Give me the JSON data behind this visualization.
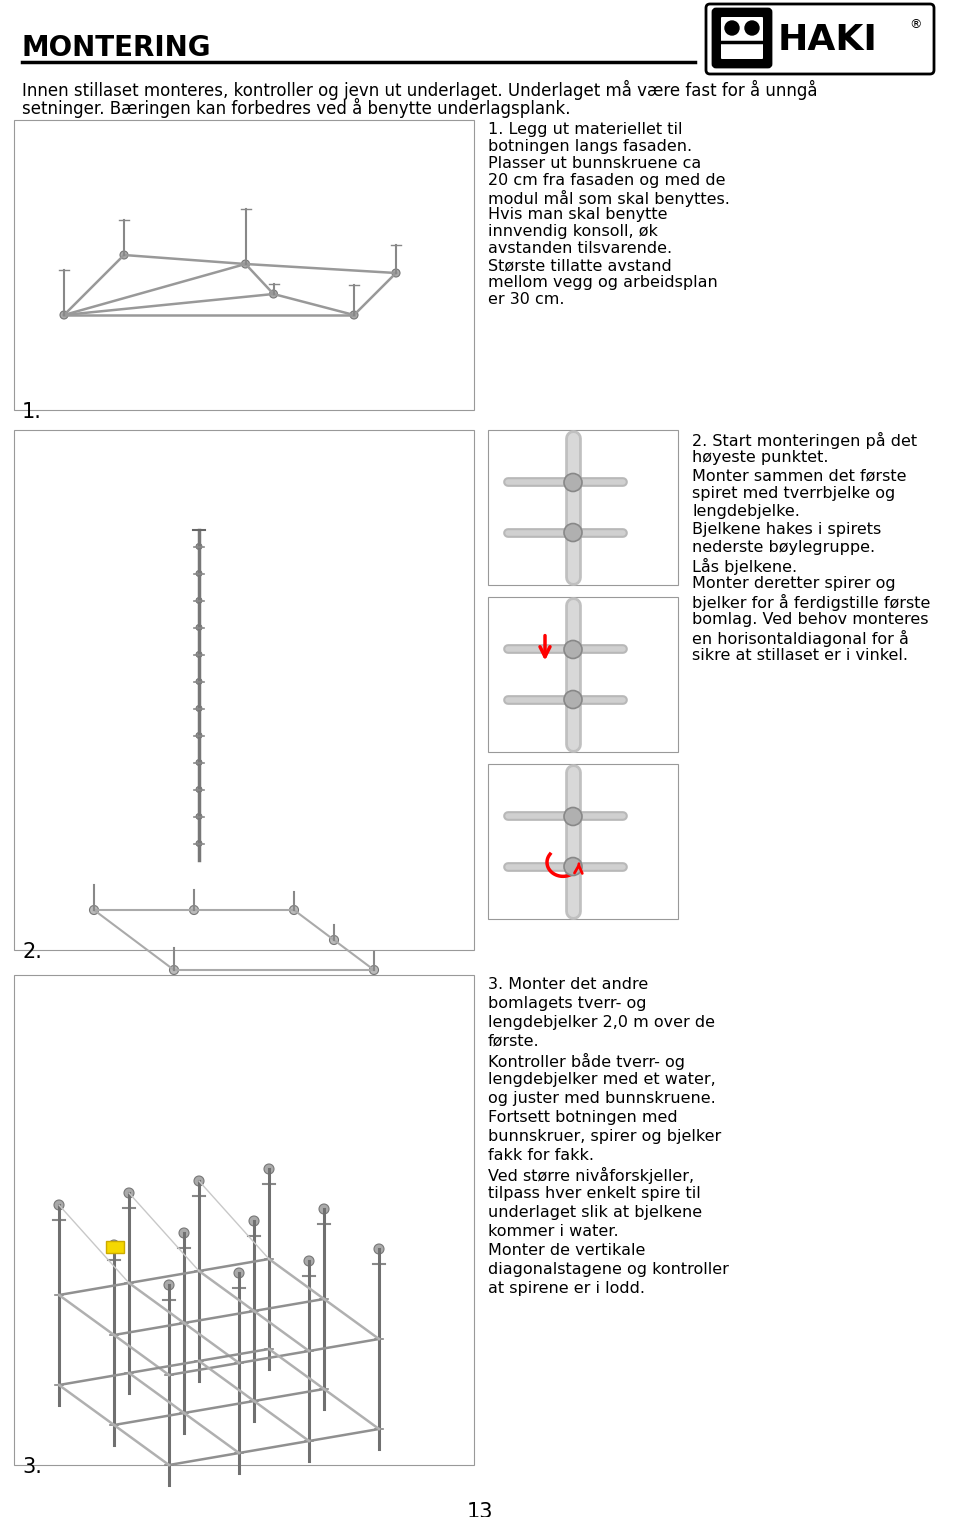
{
  "title": "MONTERING",
  "brand": "HAKI",
  "bg_color": "#ffffff",
  "text_color": "#000000",
  "intro_line1": "Innen stillaset monteres, kontroller og jevn ut underlaget. Underlaget må være fast for å unngå",
  "intro_line2": "setninger. Bæringen kan forbedres ved å benytte underlagsplank.",
  "sec1_text": [
    "1. Legg ut materiellet til",
    "botningen langs fasaden.",
    "Plasser ut bunnskruene ca",
    "20 cm fra fasaden og med de",
    "modul mål som skal benyttes.",
    "Hvis man skal benytte",
    "innvendig konsoll, øk",
    "avstanden tilsvarende.",
    "Største tillatte avstand",
    "mellom vegg og arbeidsplan",
    "er 30 cm."
  ],
  "sec2_text": [
    "2. Start monteringen på det",
    "høyeste punktet.",
    "Monter sammen det første",
    "spiret med tverrbjelke og",
    "lengdebjelke.",
    "Bjelkene hakes i spirets",
    "nederste bøylegruppe.",
    "Lås bjelkene.",
    "Monter deretter spirer og",
    "bjelker for å ferdigstille første",
    "bomlag. Ved behov monteres",
    "en horisontaldiagonal for å",
    "sikre at stillaset er i vinkel."
  ],
  "sec3_text": [
    "3. Monter det andre",
    "bomlagets tverr- og",
    "lengdebjelker 2,0 m over de",
    "første.",
    "Kontroller både tverr- og",
    "lengdebjelker med et water,",
    "og juster med bunnskruene.",
    "Fortsett botningen med",
    "bunnskruer, spirer og bjelker",
    "fakk for fakk.",
    "Ved større nivåforskjeller,",
    "tilpass hver enkelt spire til",
    "underlaget slik at bjelkene",
    "kommer i water.",
    "Monter de vertikale",
    "diagonalstagene og kontroller",
    "at spirene er i lodd."
  ],
  "page_number": "13",
  "font_size_title": 20,
  "font_size_text": 11.5,
  "font_size_intro": 12
}
